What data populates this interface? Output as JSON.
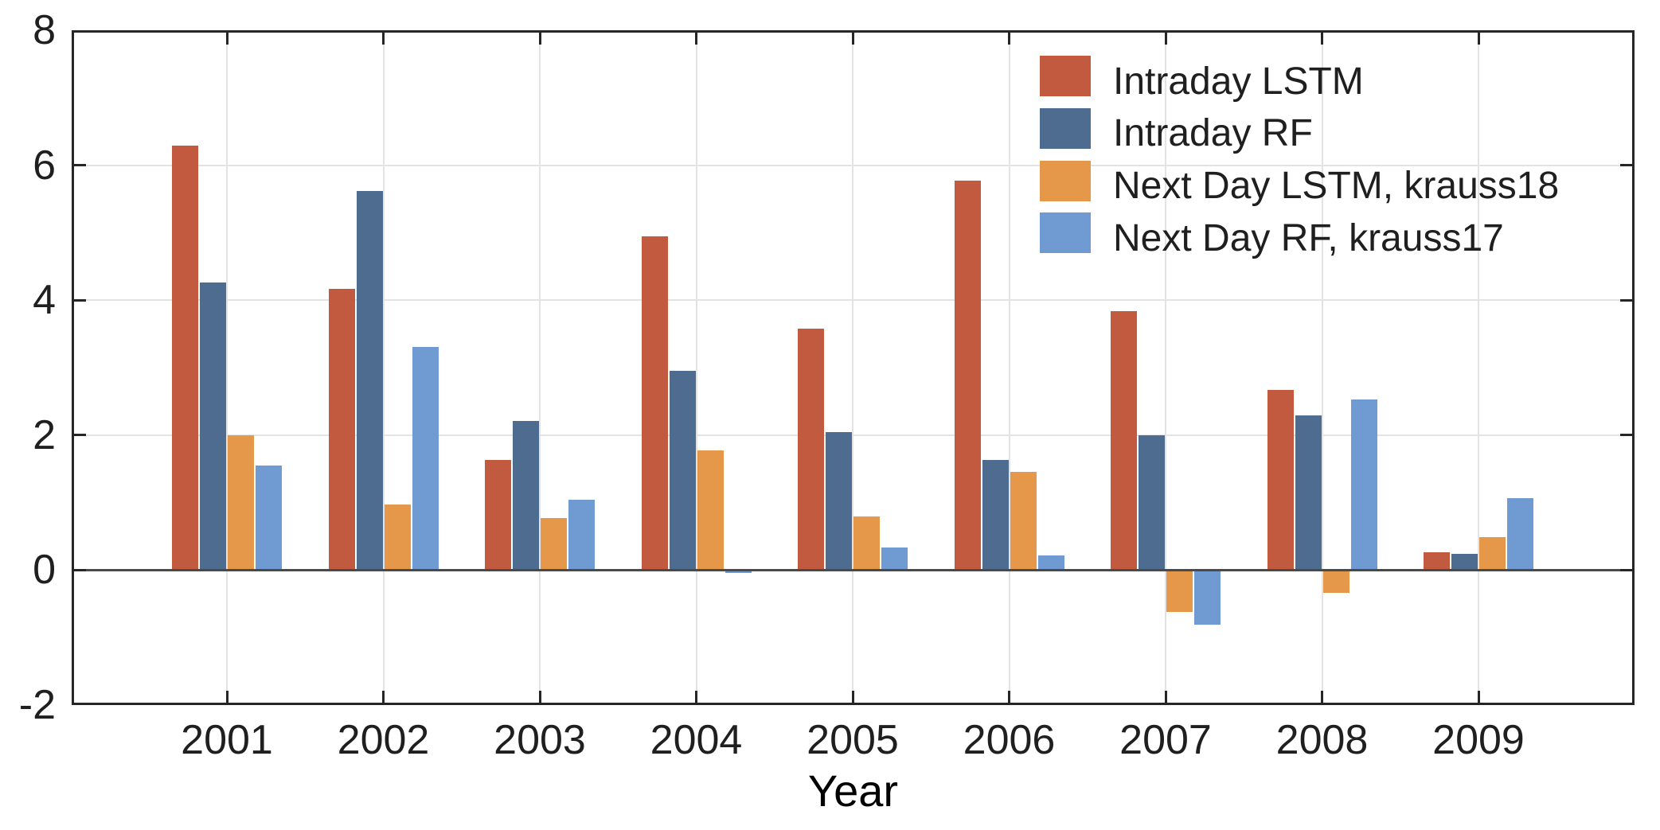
{
  "chart_data": {
    "type": "bar",
    "xlabel": "Year",
    "ylabel": "",
    "title": "",
    "categories": [
      "2001",
      "2002",
      "2003",
      "2004",
      "2005",
      "2006",
      "2007",
      "2008",
      "2009"
    ],
    "series": [
      {
        "name": "Intraday LSTM",
        "color": "#c25a3f",
        "values": [
          6.29,
          4.17,
          1.63,
          4.94,
          3.57,
          5.77,
          3.83,
          2.67,
          0.26
        ]
      },
      {
        "name": "Intraday RF",
        "color": "#4e6c90",
        "values": [
          4.26,
          5.62,
          2.21,
          2.95,
          2.04,
          1.63,
          2.0,
          2.29,
          0.24
        ]
      },
      {
        "name": "Next Day LSTM, krauss18",
        "color": "#e6984a",
        "values": [
          2.0,
          0.97,
          0.77,
          1.77,
          0.79,
          1.45,
          -0.62,
          -0.34,
          0.48
        ]
      },
      {
        "name": "Next Day RF, krauss17",
        "color": "#6f9ad2",
        "values": [
          1.55,
          3.3,
          1.04,
          -0.05,
          0.33,
          0.21,
          -0.81,
          2.53,
          1.06
        ]
      }
    ],
    "ylim": [
      -2,
      8
    ],
    "yticks": [
      8,
      6,
      4,
      2,
      0,
      -2
    ],
    "grid": true,
    "legend_position": "top-right",
    "style": {
      "grid_color": "#e3e3e3",
      "axis_color": "#262626",
      "zero_line_color": "#4a4a4a",
      "text_color": "#1f1f1f",
      "background": "#ffffff"
    }
  }
}
